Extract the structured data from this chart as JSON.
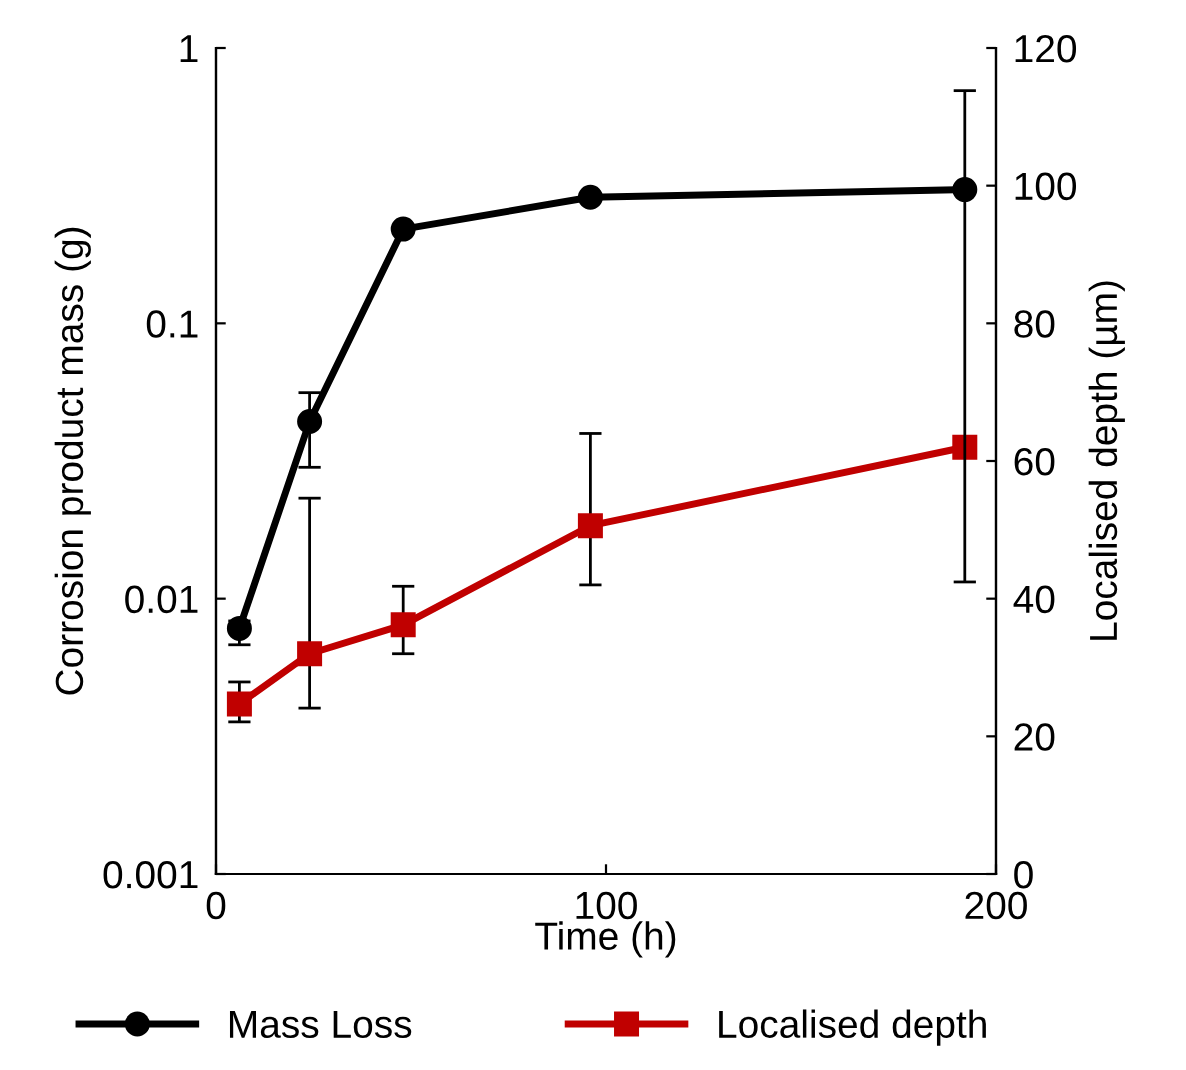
{
  "chart_data": {
    "type": "line",
    "xlabel": "Time (h)",
    "ylabel": "Corrosion product mass (g)",
    "y2label": "Localised depth (µm)",
    "x": [
      6,
      24,
      48,
      96,
      192
    ],
    "series": [
      {
        "name": "Mass Loss",
        "color": "#000000",
        "marker": "circle",
        "values": [
          0.0078,
          0.044,
          0.22,
          0.287,
          0.306
        ],
        "errors": [
          [
            0.0068,
            0.0083
          ],
          [
            0.03,
            0.056
          ],
          null,
          null,
          [
            0.0115,
            0.7
          ]
        ]
      },
      {
        "name": "Localised depth",
        "color": "#c00000",
        "marker": "square",
        "axis": "y2",
        "values": [
          24.7,
          32,
          36.2,
          50.6,
          62
        ],
        "errors": [
          [
            22.1,
            27.9
          ],
          [
            24.1,
            54.6
          ],
          [
            32,
            41.8
          ],
          [
            42,
            64
          ],
          null
        ]
      }
    ],
    "log": "y",
    "xlim": [
      0,
      200
    ],
    "xticks": [
      0,
      100,
      200
    ],
    "ylim": [
      0.001,
      1
    ],
    "yticks": [
      0.001,
      0.01,
      0.1,
      1
    ],
    "y2lim": [
      0,
      120
    ],
    "y2ticks": [
      0,
      20,
      40,
      60,
      80,
      100,
      120
    ],
    "grid": false,
    "legend": "bottom",
    "line_style": "solid"
  }
}
